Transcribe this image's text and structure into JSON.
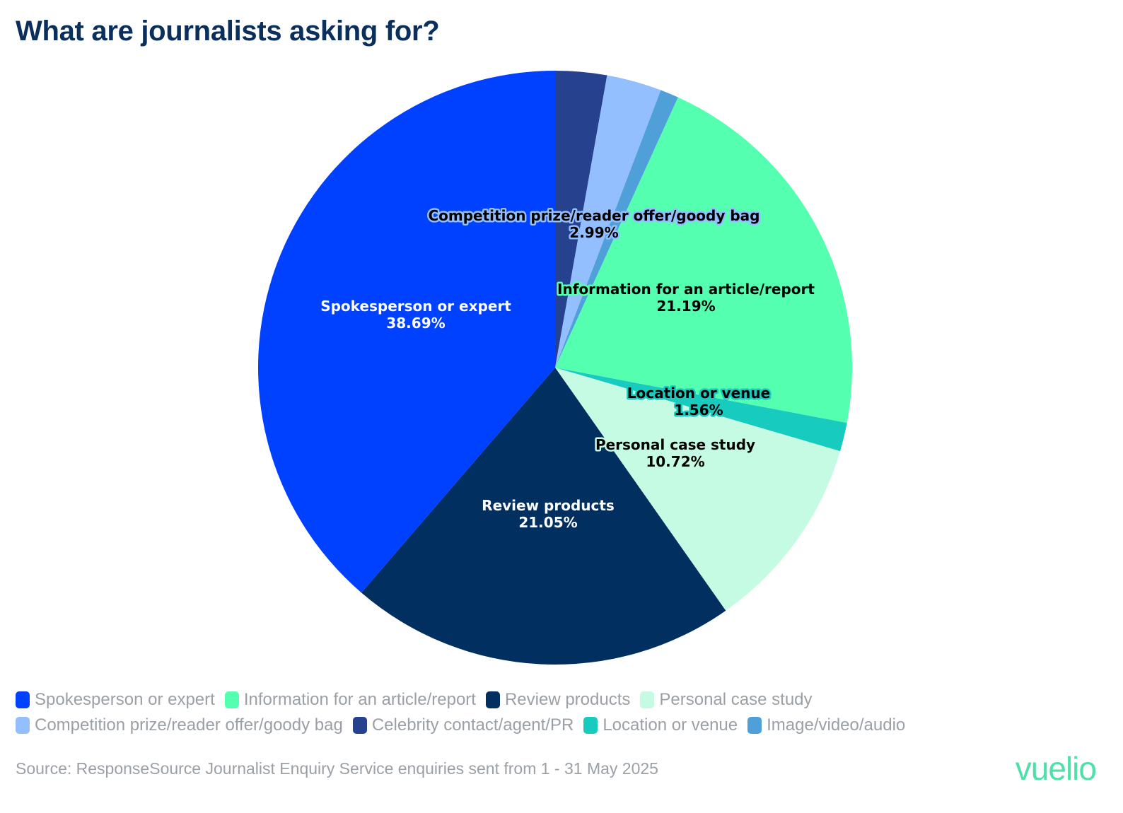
{
  "title": "What are journalists asking for?",
  "chart_data": {
    "type": "pie",
    "title": "What are journalists asking for?",
    "slices": [
      {
        "name": "Celebrity contact/agent/PR",
        "value": 2.8,
        "color": "#26428f",
        "label": ""
      },
      {
        "name": "Competition prize/reader offer/goody bag",
        "value": 2.99,
        "color": "#94bffe",
        "label": "2.99%"
      },
      {
        "name": "Image/video/audio",
        "value": 1.0,
        "color": "#4f9fd9",
        "label": ""
      },
      {
        "name": "Information for an article/report",
        "value": 21.19,
        "color": "#55ffb0",
        "label": "21.19%"
      },
      {
        "name": "Location or venue",
        "value": 1.56,
        "color": "#18cbbf",
        "label": "1.56%"
      },
      {
        "name": "Personal case study",
        "value": 10.72,
        "color": "#c6fbe3",
        "label": "10.72%"
      },
      {
        "name": "Review products",
        "value": 21.05,
        "color": "#002f60",
        "label": "21.05%"
      },
      {
        "name": "Spokesperson or expert",
        "value": 38.69,
        "color": "#0040ff",
        "label": "38.69%"
      }
    ],
    "legend_position": "bottom"
  },
  "legend": {
    "rows": [
      [
        {
          "label": "Spokesperson or expert",
          "color": "#0040ff"
        },
        {
          "label": "Information for an article/report",
          "color": "#55ffb0"
        },
        {
          "label": "Review products",
          "color": "#002f60"
        },
        {
          "label": "Personal case study",
          "color": "#c6fbe3"
        }
      ],
      [
        {
          "label": "Competition prize/reader offer/goody bag",
          "color": "#94bffe"
        },
        {
          "label": "Celebrity contact/agent/PR",
          "color": "#26428f"
        },
        {
          "label": "Location or venue",
          "color": "#18cbbf"
        },
        {
          "label": "Image/video/audio",
          "color": "#4f9fd9"
        }
      ]
    ]
  },
  "source": "Source: ResponseSource Journalist Enquiry Service enquiries sent from 1 - 31 May 2025",
  "logo": "vuelio"
}
